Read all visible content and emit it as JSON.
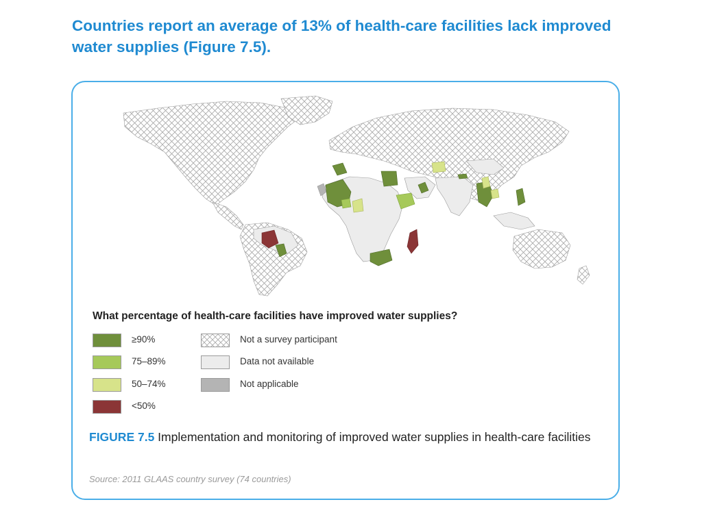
{
  "headline": "Countries report an average of 13% of health-care facilities lack improved water supplies (Figure 7.5).",
  "legend": {
    "title": "What percentage of health-care facilities have improved water supplies?",
    "items": [
      {
        "key": "ge90",
        "label": "≥90%",
        "color": "#6f8f3b"
      },
      {
        "key": "75_89",
        "label": "75–89%",
        "color": "#a6c95a"
      },
      {
        "key": "50_74",
        "label": "50–74%",
        "color": "#d7e38a"
      },
      {
        "key": "lt50",
        "label": "<50%",
        "color": "#8b3536"
      },
      {
        "key": "not_participant",
        "label": "Not a survey participant",
        "color": "hatch"
      },
      {
        "key": "na_data",
        "label": "Data not available",
        "color": "#ececec"
      },
      {
        "key": "not_applicable",
        "label": "Not applicable",
        "color": "#b4b4b4"
      }
    ]
  },
  "caption": {
    "figure_label": "FIGURE 7.5",
    "text": " Implementation and monitoring of improved water supplies in health-care facilities"
  },
  "source": "Source: 2011 GLAAS country survey (74 countries)"
}
